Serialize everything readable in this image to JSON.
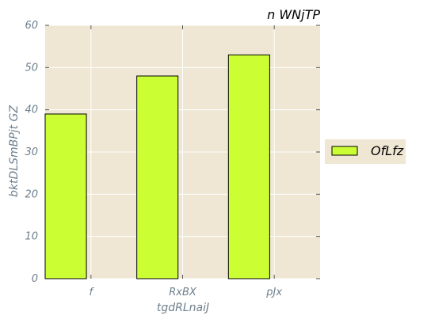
{
  "chart_data": {
    "type": "bar",
    "title": "n WNjTP",
    "xlabel": "tgdRLnaiJ",
    "ylabel": "bktDLSmBPjt GZ",
    "categories": [
      "f",
      "RxBX",
      "pJx"
    ],
    "series": [
      {
        "name": "OfLfz",
        "values": [
          39,
          48,
          53
        ]
      }
    ],
    "ylim": [
      0,
      60
    ],
    "yticks": [
      0,
      10,
      20,
      30,
      40,
      50,
      60
    ],
    "grid": true,
    "legend_position": "right"
  },
  "colors": {
    "plot_background": "#efe7d3",
    "bar_fill": "#ccff33",
    "bar_edge": "#000000",
    "grid": "#ffffff",
    "tick_text": "#6e7f8d",
    "legend_background": "#efe7d3"
  }
}
